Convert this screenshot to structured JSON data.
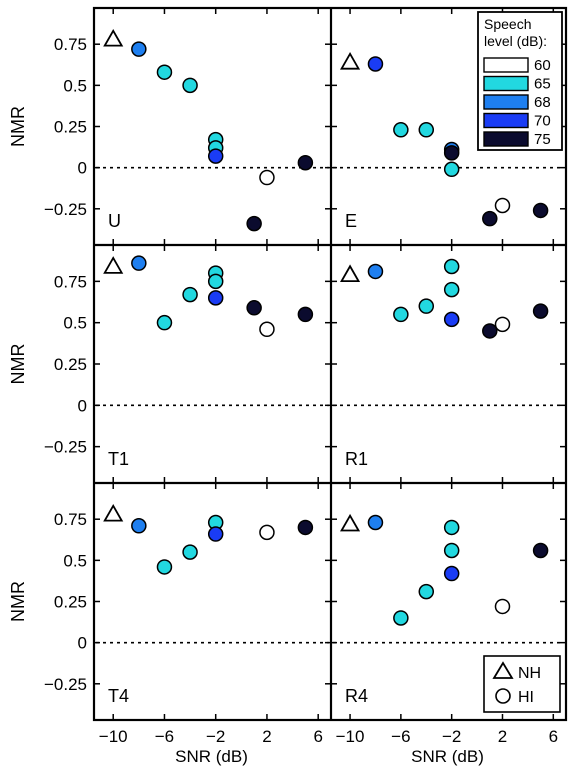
{
  "chart_data": {
    "type": "scatter",
    "ylabel": "NMR",
    "xlabel": "SNR (dB)",
    "xlim": [
      -11.5,
      7
    ],
    "ylim": [
      -0.47,
      0.97
    ],
    "xticks": [
      -10,
      -6,
      -2,
      2,
      6
    ],
    "xtick_labels": [
      "−10",
      "−6",
      "−2",
      "2",
      "6"
    ],
    "yticks": [
      0.75,
      0.5,
      0.25,
      0,
      -0.25
    ],
    "ytick_labels": [
      "0.75",
      "0.5",
      "0.25",
      "0",
      "−0.25"
    ],
    "reference_line": {
      "y": 0,
      "style": "dotted"
    },
    "legend_level": {
      "title_line1": "Speech",
      "title_line2": "level (dB):",
      "entries": [
        {
          "label": "60",
          "color": "#ffffff"
        },
        {
          "label": "65",
          "color": "#22d8e0"
        },
        {
          "label": "68",
          "color": "#1e7ff0"
        },
        {
          "label": "70",
          "color": "#1a3cf5"
        },
        {
          "label": "75",
          "color": "#0b0b2e"
        }
      ]
    },
    "legend_group": [
      {
        "label": "NH",
        "marker": "triangle"
      },
      {
        "label": "HI",
        "marker": "circle"
      }
    ],
    "panels": [
      {
        "label": "U",
        "points": [
          {
            "x": -10,
            "y": 0.78,
            "marker": "triangle"
          },
          {
            "x": -8,
            "y": 0.72,
            "level": "68"
          },
          {
            "x": -6,
            "y": 0.58,
            "level": "65"
          },
          {
            "x": -4,
            "y": 0.5,
            "level": "65"
          },
          {
            "x": -2,
            "y": 0.17,
            "level": "65"
          },
          {
            "x": -2,
            "y": 0.12,
            "level": "65"
          },
          {
            "x": -2,
            "y": 0.07,
            "level": "70"
          },
          {
            "x": 1,
            "y": -0.34,
            "level": "75"
          },
          {
            "x": 2,
            "y": -0.06,
            "level": "60"
          },
          {
            "x": 5,
            "y": 0.03,
            "level": "75"
          }
        ]
      },
      {
        "label": "E",
        "points": [
          {
            "x": -10,
            "y": 0.64,
            "marker": "triangle"
          },
          {
            "x": -8,
            "y": 0.63,
            "level": "70"
          },
          {
            "x": -6,
            "y": 0.23,
            "level": "65"
          },
          {
            "x": -4,
            "y": 0.23,
            "level": "65"
          },
          {
            "x": -2,
            "y": 0.11,
            "level": "68"
          },
          {
            "x": -2,
            "y": 0.09,
            "level": "75"
          },
          {
            "x": -2,
            "y": -0.01,
            "level": "65"
          },
          {
            "x": 1,
            "y": -0.31,
            "level": "75"
          },
          {
            "x": 2,
            "y": -0.23,
            "level": "60"
          },
          {
            "x": 5,
            "y": -0.26,
            "level": "75"
          }
        ]
      },
      {
        "label": "T1",
        "points": [
          {
            "x": -10,
            "y": 0.84,
            "marker": "triangle"
          },
          {
            "x": -8,
            "y": 0.86,
            "level": "68"
          },
          {
            "x": -6,
            "y": 0.5,
            "level": "65"
          },
          {
            "x": -4,
            "y": 0.67,
            "level": "65"
          },
          {
            "x": -2,
            "y": 0.8,
            "level": "65"
          },
          {
            "x": -2,
            "y": 0.75,
            "level": "65"
          },
          {
            "x": -2,
            "y": 0.65,
            "level": "70"
          },
          {
            "x": 1,
            "y": 0.59,
            "level": "75"
          },
          {
            "x": 2,
            "y": 0.46,
            "level": "60"
          },
          {
            "x": 5,
            "y": 0.55,
            "level": "75"
          }
        ]
      },
      {
        "label": "R1",
        "points": [
          {
            "x": -10,
            "y": 0.79,
            "marker": "triangle"
          },
          {
            "x": -8,
            "y": 0.81,
            "level": "68"
          },
          {
            "x": -6,
            "y": 0.55,
            "level": "65"
          },
          {
            "x": -4,
            "y": 0.6,
            "level": "65"
          },
          {
            "x": -2,
            "y": 0.84,
            "level": "65"
          },
          {
            "x": -2,
            "y": 0.7,
            "level": "65"
          },
          {
            "x": -2,
            "y": 0.52,
            "level": "70"
          },
          {
            "x": 1,
            "y": 0.45,
            "level": "75"
          },
          {
            "x": 2,
            "y": 0.49,
            "level": "60"
          },
          {
            "x": 5,
            "y": 0.57,
            "level": "75"
          }
        ]
      },
      {
        "label": "T4",
        "points": [
          {
            "x": -10,
            "y": 0.78,
            "marker": "triangle"
          },
          {
            "x": -8,
            "y": 0.71,
            "level": "68"
          },
          {
            "x": -6,
            "y": 0.46,
            "level": "65"
          },
          {
            "x": -4,
            "y": 0.55,
            "level": "65"
          },
          {
            "x": -2,
            "y": 0.73,
            "level": "65"
          },
          {
            "x": -2,
            "y": 0.66,
            "level": "70"
          },
          {
            "x": 2,
            "y": 0.67,
            "level": "60"
          },
          {
            "x": 5,
            "y": 0.7,
            "level": "75"
          }
        ]
      },
      {
        "label": "R4",
        "points": [
          {
            "x": -10,
            "y": 0.72,
            "marker": "triangle"
          },
          {
            "x": -8,
            "y": 0.73,
            "level": "68"
          },
          {
            "x": -6,
            "y": 0.15,
            "level": "65"
          },
          {
            "x": -4,
            "y": 0.31,
            "level": "65"
          },
          {
            "x": -2,
            "y": 0.7,
            "level": "65"
          },
          {
            "x": -2,
            "y": 0.56,
            "level": "65"
          },
          {
            "x": -2,
            "y": 0.42,
            "level": "70"
          },
          {
            "x": 2,
            "y": 0.22,
            "level": "60"
          },
          {
            "x": 5,
            "y": 0.56,
            "level": "75"
          }
        ]
      }
    ]
  }
}
